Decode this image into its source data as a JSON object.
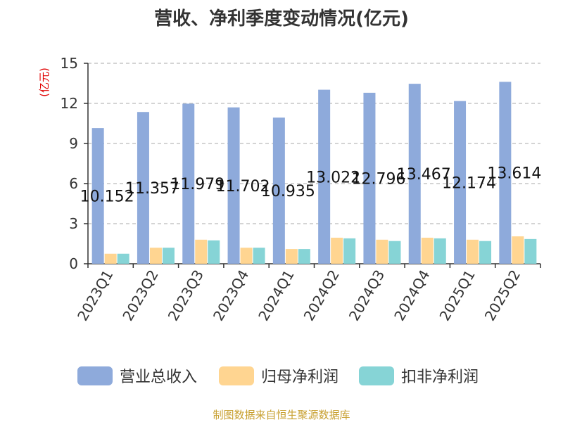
{
  "chart_data": {
    "type": "bar",
    "title": "营收、净利季度变动情况(亿元)",
    "ylabel": "(亿元)",
    "ylim": [
      0,
      15
    ],
    "yticks": [
      0,
      3,
      6,
      9,
      12,
      15
    ],
    "grid": true,
    "legend_position": "bottom",
    "categories": [
      "2023Q1",
      "2023Q2",
      "2023Q3",
      "2023Q4",
      "2024Q1",
      "2024Q2",
      "2024Q3",
      "2024Q4",
      "2025Q1",
      "2025Q2"
    ],
    "series": [
      {
        "name": "营业总收入",
        "color": "#8eaadb",
        "values": [
          10.152,
          11.357,
          11.979,
          11.702,
          10.935,
          13.022,
          12.796,
          13.467,
          12.174,
          13.614
        ],
        "data_labels": [
          "10.152",
          "11.357",
          "11.979",
          "11.702",
          "10.935",
          "13.022",
          "12.796",
          "13.467",
          "12.174",
          "13.614"
        ]
      },
      {
        "name": "归母净利润",
        "color": "#ffd591",
        "values": [
          0.75,
          1.2,
          1.8,
          1.2,
          1.1,
          1.95,
          1.8,
          1.95,
          1.8,
          2.05
        ]
      },
      {
        "name": "扣非净利润",
        "color": "#86d4d6",
        "values": [
          0.75,
          1.2,
          1.75,
          1.2,
          1.1,
          1.9,
          1.7,
          1.9,
          1.7,
          1.85
        ]
      }
    ]
  },
  "footer": {
    "source": "制图数据来自恒生聚源数据库"
  }
}
